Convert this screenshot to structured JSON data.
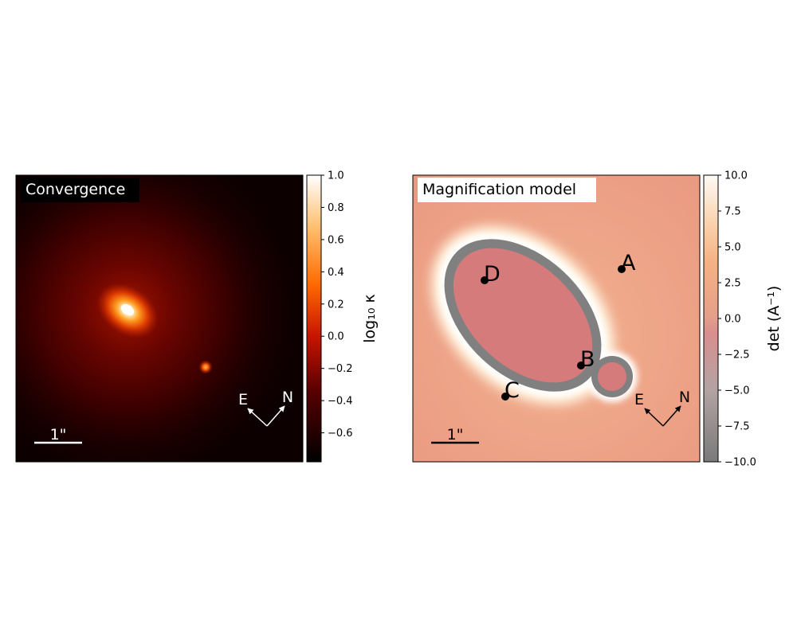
{
  "chart_data": [
    {
      "type": "heatmap",
      "panel_label": "Convergence",
      "colormap": "gist_heat",
      "colorbar": {
        "label": "log₁₀ κ",
        "range": [
          -0.78,
          1.0
        ],
        "ticks": [
          "1.0",
          "0.8",
          "0.6",
          "0.4",
          "0.2",
          "0.0",
          "−0.2",
          "−0.4",
          "−0.6"
        ],
        "tick_values": [
          1.0,
          0.8,
          0.6,
          0.4,
          0.2,
          0.0,
          -0.2,
          -0.4,
          -0.6
        ]
      },
      "scale_bar": "1\"",
      "compass": {
        "east": "E",
        "north": "N"
      }
    },
    {
      "type": "heatmap",
      "panel_label": "Magnification model",
      "colormap": "RdGy (semi-transparent)",
      "colorbar": {
        "label": "det (A⁻¹)",
        "range": [
          -10.0,
          10.0
        ],
        "ticks": [
          "10.0",
          "7.5",
          "5.0",
          "2.5",
          "0.0",
          "−2.5",
          "−5.0",
          "−7.5",
          "−10.0"
        ],
        "tick_values": [
          10.0,
          7.5,
          5.0,
          2.5,
          0.0,
          -2.5,
          -5.0,
          -7.5,
          -10.0
        ]
      },
      "images": [
        {
          "label": "A"
        },
        {
          "label": "B"
        },
        {
          "label": "C"
        },
        {
          "label": "D"
        }
      ],
      "scale_bar": "1\"",
      "compass": {
        "east": "E",
        "north": "N"
      }
    }
  ]
}
